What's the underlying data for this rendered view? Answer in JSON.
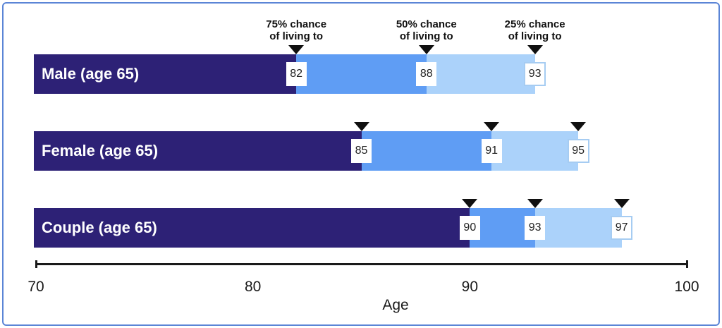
{
  "frame": {
    "border_color": "#5b85d6"
  },
  "chart_data": {
    "type": "bar",
    "orientation": "horizontal",
    "title": "",
    "xlabel": "Age",
    "xlim": [
      70,
      100
    ],
    "x_ticks": [
      "70",
      "80",
      "90",
      "100"
    ],
    "grid": false,
    "legend_position": "top-annotations",
    "annotations": [
      {
        "line1": "75% chance",
        "line2": "of living to",
        "series": "p75",
        "marker_age": 82
      },
      {
        "line1": "50% chance",
        "line2": "of living to",
        "series": "p50",
        "marker_age": 88
      },
      {
        "line1": "25% chance",
        "line2": "of living to",
        "series": "p25",
        "marker_age": 93
      }
    ],
    "series": [
      {
        "key": "p75",
        "name": "75% chance of living to",
        "color": "#2d2176"
      },
      {
        "key": "p50",
        "name": "50% chance of living to",
        "color": "#5f9df4"
      },
      {
        "key": "p25",
        "name": "25% chance of living to",
        "color": "#abd2fa"
      }
    ],
    "rows": [
      {
        "label": "Male (age 65)",
        "values": {
          "p75": 82,
          "p50": 88,
          "p25": 93
        }
      },
      {
        "label": "Female (age 65)",
        "values": {
          "p75": 85,
          "p50": 91,
          "p25": 95
        }
      },
      {
        "label": "Couple (age 65)",
        "values": {
          "p75": 90,
          "p50": 93,
          "p25": 97
        }
      }
    ],
    "marker_color": "#101010",
    "value_box_border_color": "#a6ccf2",
    "axis_color": "#1a1a1a"
  }
}
